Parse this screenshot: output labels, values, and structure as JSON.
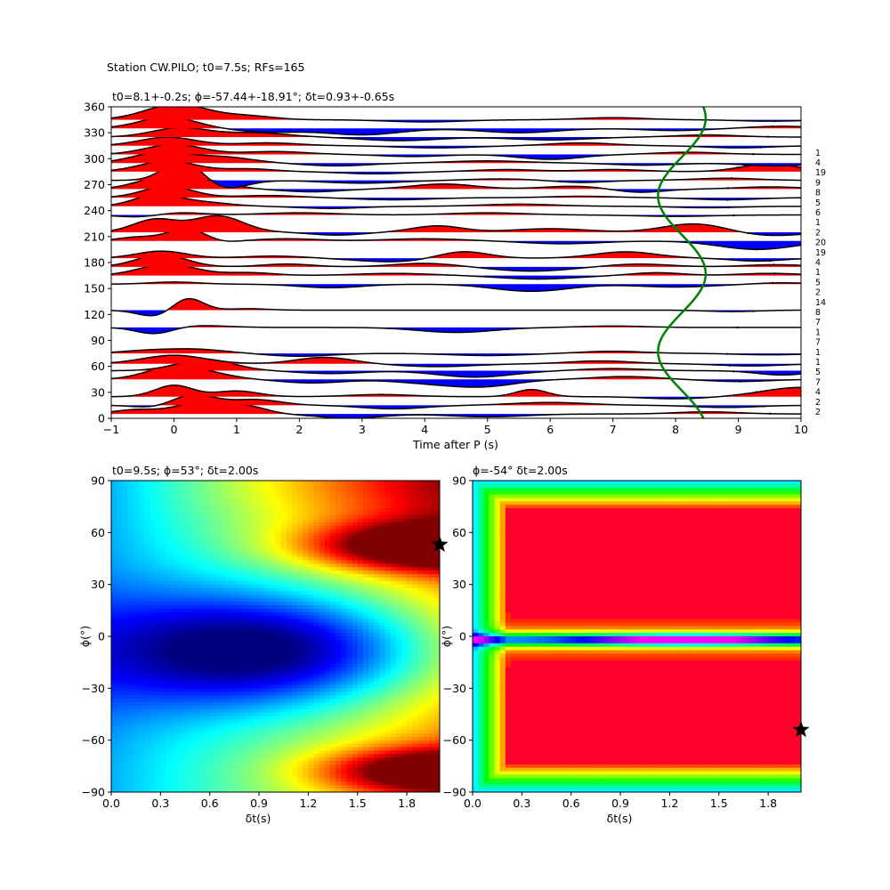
{
  "figure": {
    "suptitle": "Station CW.PILO; t0=7.5s; RFs=165"
  },
  "chart_data": [
    {
      "type": "line",
      "panel": "receiver-functions",
      "title": "t0=8.1+-0.2s; ϕ=-57.44+-18.91°; δt=0.93+-0.65s",
      "xlabel": "Time after P (s)",
      "ylabel": "",
      "xlim": [
        -1,
        10
      ],
      "ylim": [
        0,
        360
      ],
      "xticks": [
        -1,
        0,
        1,
        2,
        3,
        4,
        5,
        6,
        7,
        8,
        9,
        10
      ],
      "yticks": [
        0,
        30,
        60,
        90,
        120,
        150,
        180,
        210,
        240,
        270,
        300,
        330,
        360
      ],
      "grid": false,
      "colors": {
        "positive": "#ff0000",
        "negative": "#0000ff",
        "trace": "#000000",
        "fit_curve": "#008000"
      },
      "traces": [
        {
          "baz": 5,
          "count": "2",
          "bumps": [
            [
              -0.6,
              0.35,
              0.6
            ],
            [
              0.45,
              0.4,
              1.7
            ],
            [
              1.2,
              0.3,
              0.9
            ],
            [
              2.8,
              0.5,
              -0.6
            ],
            [
              5.0,
              0.6,
              -0.4
            ],
            [
              8.5,
              0.5,
              0.3
            ]
          ]
        },
        {
          "baz": 15,
          "count": "2",
          "bumps": [
            [
              -0.3,
              0.3,
              -0.4
            ],
            [
              0.3,
              0.35,
              1.5
            ],
            [
              1.3,
              0.4,
              0.8
            ],
            [
              3.5,
              0.5,
              -0.5
            ],
            [
              6.0,
              0.6,
              0.4
            ],
            [
              8.8,
              0.5,
              -0.3
            ]
          ]
        },
        {
          "baz": 25,
          "count": "4",
          "bumps": [
            [
              0.0,
              0.3,
              1.6
            ],
            [
              1.0,
              0.35,
              0.8
            ],
            [
              3.3,
              0.5,
              0.3
            ],
            [
              5.7,
              0.25,
              1.0
            ],
            [
              8.0,
              0.5,
              -0.3
            ],
            [
              10.0,
              0.6,
              1.3
            ]
          ]
        },
        {
          "baz": 45,
          "count": "7",
          "bumps": [
            [
              -0.3,
              0.3,
              0.4
            ],
            [
              0.2,
              0.5,
              1.6
            ],
            [
              2.2,
              0.5,
              -0.5
            ],
            [
              4.2,
              0.6,
              -0.6
            ],
            [
              5.0,
              0.5,
              -0.8
            ],
            [
              7.2,
              0.5,
              0.4
            ],
            [
              9.0,
              0.5,
              -0.3
            ]
          ]
        },
        {
          "baz": 55,
          "count": "5",
          "bumps": [
            [
              0.5,
              0.45,
              1.6
            ],
            [
              2.5,
              0.5,
              -0.4
            ],
            [
              4.8,
              0.6,
              -0.9
            ],
            [
              7.0,
              0.5,
              0.3
            ],
            [
              9.7,
              0.4,
              -0.6
            ]
          ]
        },
        {
          "baz": 63,
          "count": "1",
          "bumps": [
            [
              0.0,
              0.5,
              1.2
            ],
            [
              2.4,
              0.45,
              0.9
            ],
            [
              4.2,
              0.6,
              -0.4
            ],
            [
              6.8,
              0.5,
              0.4
            ],
            [
              9.2,
              0.5,
              -0.3
            ]
          ]
        },
        {
          "baz": 75,
          "count": "1",
          "bumps": [
            [
              -0.5,
              0.4,
              0.3
            ],
            [
              0.3,
              0.5,
              0.6
            ],
            [
              2.0,
              0.5,
              -0.4
            ],
            [
              5.0,
              0.6,
              -0.3
            ],
            [
              7.0,
              0.5,
              0.3
            ],
            [
              9.5,
              0.5,
              -0.2
            ]
          ]
        },
        {
          "baz": 105,
          "count": "7",
          "bumps": [
            [
              -0.3,
              0.3,
              -1.0
            ],
            [
              0.3,
              0.5,
              0.3
            ],
            [
              4.5,
              0.6,
              -0.7
            ],
            [
              7.0,
              0.5,
              0.2
            ]
          ]
        },
        {
          "baz": 125,
          "count": "1",
          "bumps": [
            [
              -0.25,
              0.3,
              -1.0
            ],
            [
              0.2,
              0.25,
              1.9
            ],
            [
              1.2,
              0.3,
              0.2
            ],
            [
              8.9,
              0.4,
              -0.2
            ]
          ]
        },
        {
          "baz": 155,
          "count": "7",
          "bumps": [
            [
              0.0,
              0.4,
              0.3
            ],
            [
              2.5,
              0.5,
              -0.5
            ],
            [
              5.7,
              0.6,
              -1.0
            ],
            [
              8.0,
              0.6,
              -0.4
            ],
            [
              9.7,
              0.4,
              0.2
            ]
          ]
        },
        {
          "baz": 165,
          "count": "8",
          "bumps": [
            [
              -0.1,
              0.45,
              1.6
            ],
            [
              1.2,
              0.4,
              0.4
            ],
            [
              3.5,
              0.6,
              0.3
            ],
            [
              5.8,
              0.6,
              -0.5
            ],
            [
              7.7,
              0.4,
              0.4
            ],
            [
              9.5,
              0.5,
              0.3
            ]
          ]
        },
        {
          "baz": 175,
          "count": "14",
          "bumps": [
            [
              -0.2,
              0.4,
              1.7
            ],
            [
              1.8,
              0.4,
              0.4
            ],
            [
              4.0,
              0.5,
              0.5
            ],
            [
              5.7,
              0.6,
              -0.6
            ],
            [
              7.4,
              0.5,
              0.4
            ],
            [
              9.6,
              0.5,
              0.3
            ]
          ]
        },
        {
          "baz": 185,
          "count": "2",
          "bumps": [
            [
              -0.2,
              0.4,
              1.0
            ],
            [
              1.6,
              0.5,
              0.3
            ],
            [
              3.5,
              0.6,
              -0.5
            ],
            [
              4.6,
              0.4,
              1.0
            ],
            [
              7.2,
              0.5,
              0.9
            ],
            [
              9.3,
              0.4,
              -0.4
            ]
          ]
        },
        {
          "baz": 205,
          "count": "5",
          "bumps": [
            [
              -0.6,
              0.3,
              0.5
            ],
            [
              0.3,
              0.35,
              2.2
            ],
            [
              0.6,
              0.3,
              -1.0
            ],
            [
              1.8,
              0.5,
              0.3
            ],
            [
              4.0,
              0.6,
              0.3
            ],
            [
              6.2,
              0.6,
              -0.4
            ],
            [
              9.3,
              0.6,
              -1.2
            ]
          ]
        },
        {
          "baz": 215,
          "count": "1",
          "bumps": [
            [
              -0.3,
              0.35,
              1.8
            ],
            [
              0.7,
              0.4,
              2.3
            ],
            [
              2.6,
              0.4,
              -0.4
            ],
            [
              4.2,
              0.4,
              0.9
            ],
            [
              6.0,
              0.6,
              0.5
            ],
            [
              8.3,
              0.5,
              1.2
            ],
            [
              9.5,
              0.5,
              -0.5
            ]
          ]
        },
        {
          "baz": 235,
          "count": "4",
          "bumps": [
            [
              -0.5,
              0.35,
              -0.4
            ],
            [
              0.0,
              0.4,
              0.4
            ],
            [
              2.0,
              0.6,
              0.3
            ],
            [
              5.0,
              0.6,
              0.3
            ],
            [
              8.0,
              0.6,
              -0.2
            ]
          ]
        },
        {
          "baz": 245,
          "count": "19",
          "bumps": [
            [
              -0.3,
              0.35,
              1.5
            ],
            [
              0.4,
              0.45,
              0.6
            ],
            [
              2.5,
              0.5,
              -0.3
            ],
            [
              5.5,
              0.6,
              0.3
            ],
            [
              8.5,
              0.5,
              -0.2
            ]
          ]
        },
        {
          "baz": 255,
          "count": "20",
          "bumps": [
            [
              -0.1,
              0.4,
              1.6
            ],
            [
              1.5,
              0.5,
              0.3
            ],
            [
              3.5,
              0.6,
              -0.3
            ],
            [
              6.5,
              0.5,
              0.2
            ],
            [
              8.8,
              0.5,
              -0.3
            ]
          ]
        },
        {
          "baz": 265,
          "count": "2",
          "bumps": [
            [
              -0.2,
              0.4,
              1.6
            ],
            [
              0.6,
              0.35,
              1.0
            ],
            [
              2.2,
              0.45,
              -0.4
            ],
            [
              4.3,
              0.5,
              0.7
            ],
            [
              6.4,
              0.5,
              0.4
            ],
            [
              7.4,
              0.4,
              -0.5
            ],
            [
              9.5,
              0.5,
              0.3
            ]
          ]
        },
        {
          "baz": 275,
          "count": "1",
          "bumps": [
            [
              0.15,
              0.3,
              3.0
            ],
            [
              0.8,
              0.35,
              -1.2
            ],
            [
              3.0,
              0.6,
              -0.4
            ],
            [
              5.2,
              0.5,
              0.2
            ],
            [
              6.5,
              0.4,
              -0.3
            ],
            [
              8.8,
              0.5,
              0.3
            ]
          ]
        },
        {
          "baz": 285,
          "count": "6",
          "bumps": [
            [
              -0.1,
              0.45,
              1.5
            ],
            [
              1.2,
              0.4,
              0.4
            ],
            [
              3.2,
              0.5,
              -0.3
            ],
            [
              5.3,
              0.5,
              0.3
            ],
            [
              7.0,
              0.5,
              0.3
            ],
            [
              9.5,
              0.45,
              1.1
            ]
          ]
        },
        {
          "baz": 295,
          "count": "5",
          "bumps": [
            [
              -0.2,
              0.45,
              1.5
            ],
            [
              0.8,
              0.45,
              0.8
            ],
            [
              2.6,
              0.5,
              -0.4
            ],
            [
              5.0,
              0.6,
              0.3
            ],
            [
              7.5,
              0.5,
              -0.3
            ],
            [
              9.6,
              0.5,
              -0.4
            ]
          ]
        },
        {
          "baz": 305,
          "count": "8",
          "bumps": [
            [
              0.0,
              0.45,
              1.4
            ],
            [
              1.6,
              0.5,
              0.4
            ],
            [
              3.8,
              0.5,
              -0.3
            ],
            [
              6.0,
              0.5,
              -0.7
            ],
            [
              8.2,
              0.5,
              0.3
            ]
          ]
        },
        {
          "baz": 315,
          "count": "9",
          "bumps": [
            [
              -0.1,
              0.45,
              1.2
            ],
            [
              1.5,
              0.5,
              0.4
            ],
            [
              4.2,
              0.6,
              -0.3
            ],
            [
              6.5,
              0.5,
              0.4
            ],
            [
              9.0,
              0.5,
              -0.3
            ]
          ]
        },
        {
          "baz": 325,
          "count": "19",
          "bumps": [
            [
              0.1,
              0.45,
              1.3
            ],
            [
              1.3,
              0.5,
              0.6
            ],
            [
              3.6,
              0.6,
              -0.5
            ],
            [
              6.0,
              0.6,
              -0.4
            ],
            [
              8.5,
              0.5,
              0.3
            ]
          ]
        },
        {
          "baz": 335,
          "count": "4",
          "bumps": [
            [
              -0.1,
              0.45,
              1.6
            ],
            [
              1.5,
              0.5,
              -0.5
            ],
            [
              3.0,
              0.6,
              -0.9
            ],
            [
              5.5,
              0.6,
              -0.6
            ],
            [
              8.0,
              0.5,
              -0.3
            ],
            [
              9.7,
              0.5,
              0.3
            ]
          ]
        },
        {
          "baz": 345,
          "count": "1",
          "bumps": [
            [
              0.05,
              0.5,
              2.2
            ],
            [
              1.2,
              0.4,
              0.5
            ],
            [
              4.0,
              0.6,
              -0.3
            ],
            [
              7.0,
              0.5,
              0.3
            ],
            [
              9.5,
              0.5,
              -0.2
            ]
          ]
        }
      ],
      "fit_curve": {
        "mean_s": 8.1,
        "amplitude_s": 0.38,
        "period_deg": 180,
        "phase_deg": 122,
        "color": "#008000"
      }
    },
    {
      "type": "heatmap",
      "panel": "grid-search-left",
      "title": "t0=9.5s; ϕ=53°; δt=2.00s",
      "xlabel": "δt(s)",
      "ylabel": "ϕ(°)",
      "xlim": [
        0,
        2
      ],
      "ylim": [
        -90,
        90
      ],
      "xticks": [
        "0.0",
        "0.3",
        "0.6",
        "0.9",
        "1.2",
        "1.5",
        "1.8"
      ],
      "yticks": [
        "−90",
        "−60",
        "−30",
        "0",
        "30",
        "60",
        "90"
      ],
      "colormap": "jet",
      "best_fit": {
        "dt": 2.0,
        "phi": 53
      }
    },
    {
      "type": "heatmap",
      "panel": "grid-search-right",
      "title": "ϕ=-54° δt=2.00s",
      "xlabel": "δt(s)",
      "ylabel": "ϕ(°)",
      "xlim": [
        0,
        2
      ],
      "ylim": [
        -90,
        90
      ],
      "xticks": [
        "0.0",
        "0.3",
        "0.6",
        "0.9",
        "1.2",
        "1.5",
        "1.8"
      ],
      "yticks": [
        "−90",
        "−60",
        "−30",
        "0",
        "30",
        "60",
        "90"
      ],
      "colormap": "gist_rainbow",
      "best_fit": {
        "dt": 2.0,
        "phi": -54
      }
    }
  ]
}
